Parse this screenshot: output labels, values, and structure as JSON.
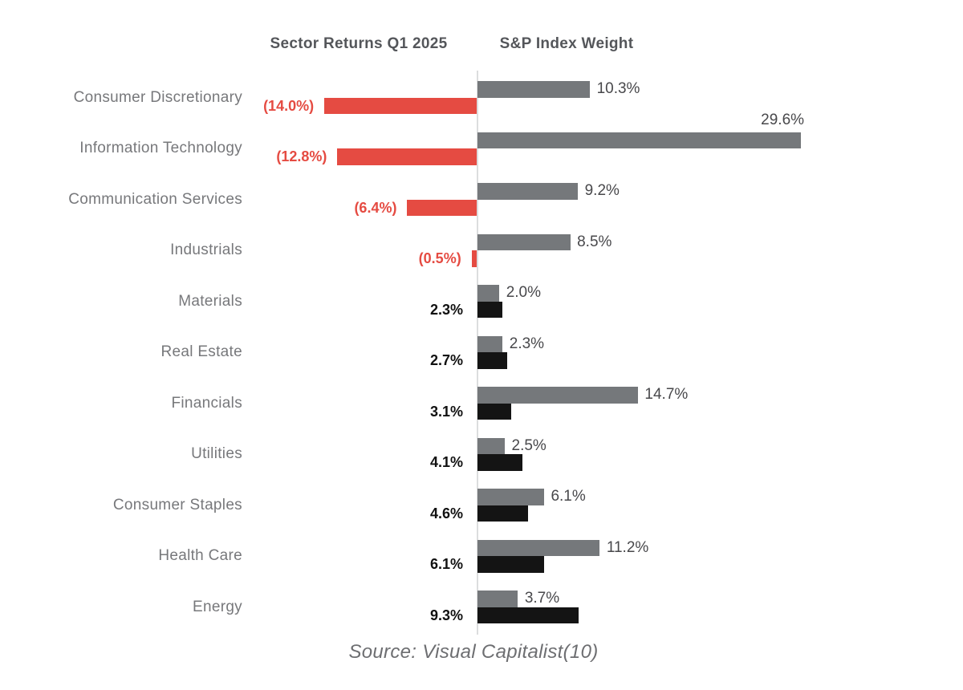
{
  "header": {
    "left_title": "Sector Returns Q1 2025",
    "right_title": "S&P Index Weight"
  },
  "source": "Source: Visual Capitalist(10)",
  "colors": {
    "negative_bar": "#E54B42",
    "positive_bar": "#141414",
    "weight_bar": "#75787B",
    "negative_label": "#E54B42",
    "positive_label": "#111111",
    "weight_label": "#48484B",
    "axis_line": "#DCDDDE",
    "category_label": "#77787B",
    "header_text": "#54565A",
    "source_text": "#6D6E71"
  },
  "chart_data": {
    "type": "bar",
    "orientation": "horizontal-diverging",
    "title": "",
    "xlabel": "",
    "ylabel": "",
    "grid": false,
    "legend_position": "column-headers",
    "categories": [
      "Consumer Discretionary",
      "Information Technology",
      "Communication Services",
      "Industrials",
      "Materials",
      "Real Estate",
      "Financials",
      "Utilities",
      "Consumer Staples",
      "Health Care",
      "Energy"
    ],
    "series": [
      {
        "name": "Sector Returns Q1 2025",
        "unit": "%",
        "values": [
          -14.0,
          -12.8,
          -6.4,
          -0.5,
          2.3,
          2.7,
          3.1,
          4.1,
          4.6,
          6.1,
          9.3
        ],
        "labels": [
          "(14.0%)",
          "(12.8%)",
          "(6.4%)",
          "(0.5%)",
          "2.3%",
          "2.7%",
          "3.1%",
          "4.1%",
          "4.6%",
          "6.1%",
          "9.3%"
        ]
      },
      {
        "name": "S&P Index Weight",
        "unit": "%",
        "values": [
          10.3,
          29.6,
          9.2,
          8.5,
          2.0,
          2.3,
          14.7,
          2.5,
          6.1,
          11.2,
          3.7
        ],
        "labels": [
          "10.3%",
          "29.6%",
          "9.2%",
          "8.5%",
          "2.0%",
          "2.3%",
          "14.7%",
          "2.5%",
          "6.1%",
          "11.2%",
          "3.7%"
        ]
      }
    ],
    "value_range_percent": [
      -14.0,
      29.6
    ]
  }
}
